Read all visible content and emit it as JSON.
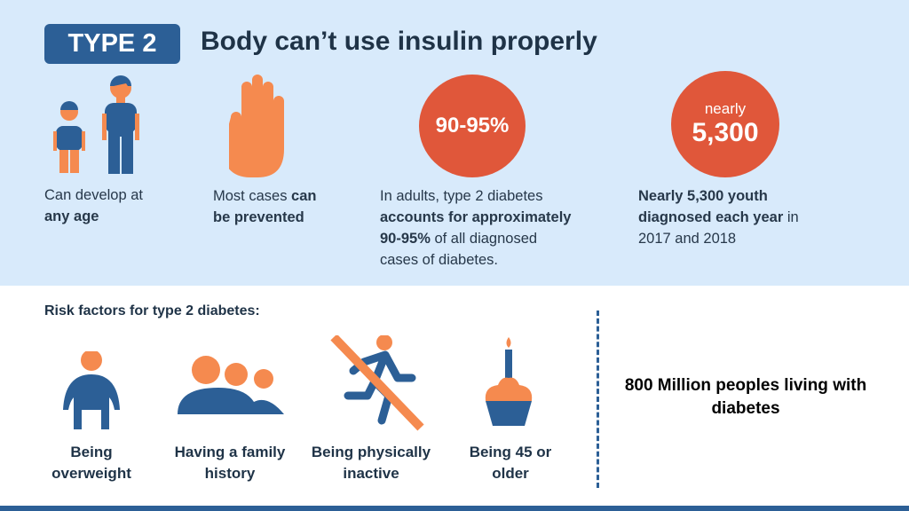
{
  "header": {
    "badge": "TYPE 2",
    "title": "Body can’t use insulin properly"
  },
  "facts": [
    {
      "icon": "child-adult-icon",
      "text_plain": "Can develop at",
      "text_bold": "any age"
    },
    {
      "icon": "stop-hand-icon",
      "text_plain": "Most cases ",
      "text_bold": "can be prevented"
    },
    {
      "circle": "90-95%",
      "l1": "In adults, type 2 diabetes",
      "l2": "accounts for approximately",
      "l3b": "90-95%",
      "l3": " of all diagnosed",
      "l4": "cases of diabetes."
    },
    {
      "circle_small": "nearly",
      "circle": "5,300",
      "l1b": "Nearly 5,300 youth",
      "l2b": "diagnosed each year",
      "l2": " in",
      "l3": "2017 and 2018"
    }
  ],
  "risk": {
    "title": "Risk factors for type 2 diabetes:",
    "items": [
      {
        "icon": "overweight-person-icon",
        "l1": "Being",
        "l2": "overweight"
      },
      {
        "icon": "family-icon",
        "l1": "Having a family",
        "l2": "history"
      },
      {
        "icon": "no-running-icon",
        "l1": "Being physically",
        "l2": "inactive"
      },
      {
        "icon": "birthday-cupcake-icon",
        "l1": "Being 45 or",
        "l2": "older"
      }
    ]
  },
  "stat": {
    "l1": "800 Million peoples living with",
    "l2": "diabetes"
  },
  "colors": {
    "background": "#d8eafb",
    "blue": "#2c5f96",
    "orange": "#f58a4f",
    "red": "#e0573a"
  }
}
